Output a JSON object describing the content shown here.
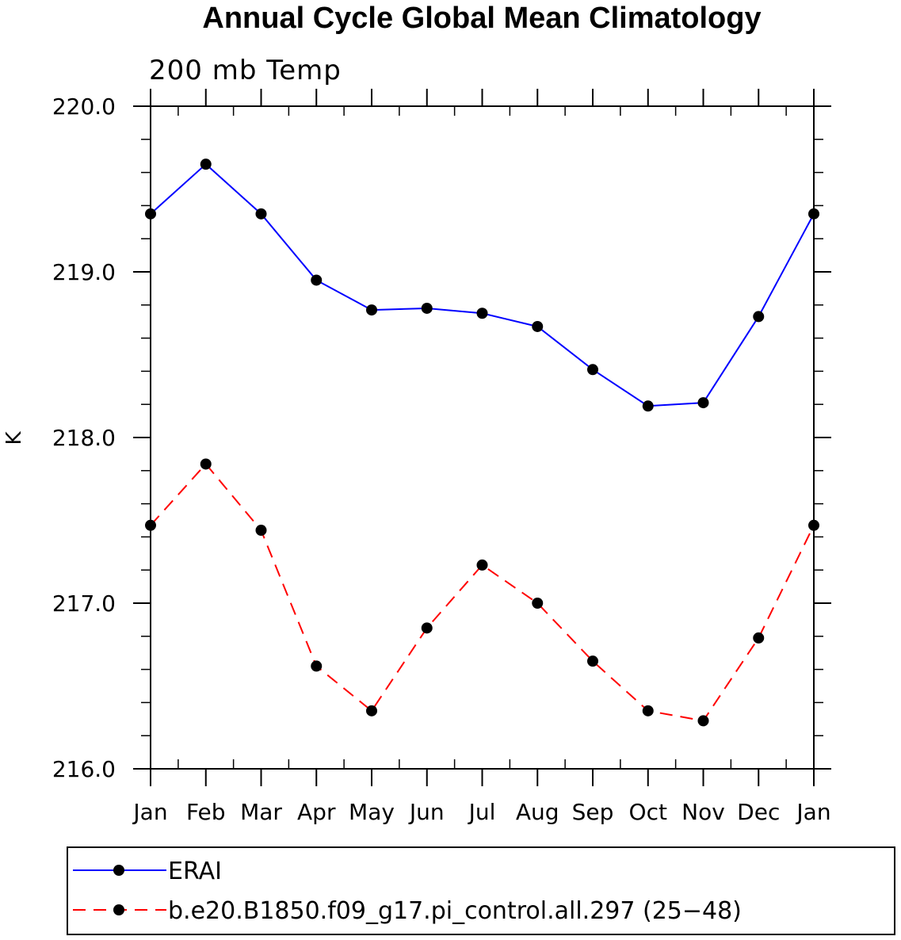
{
  "chart_data": {
    "type": "line",
    "title": "Annual Cycle Global Mean Climatology",
    "subtitle": "200 mb Temp",
    "xlabel": "",
    "ylabel": "K",
    "categories": [
      "Jan",
      "Feb",
      "Mar",
      "Apr",
      "May",
      "Jun",
      "Jul",
      "Aug",
      "Sep",
      "Oct",
      "Nov",
      "Dec",
      "Jan"
    ],
    "ylim": [
      216.0,
      220.0
    ],
    "yticks": [
      "216.0",
      "217.0",
      "218.0",
      "219.0",
      "220.0"
    ],
    "grid": false,
    "legend_position": "bottom",
    "series": [
      {
        "name": "ERAI",
        "color": "#0000ff",
        "line_style": "solid",
        "marker": "filled-circle",
        "values": [
          219.35,
          219.65,
          219.35,
          218.95,
          218.77,
          218.78,
          218.75,
          218.67,
          218.41,
          218.19,
          218.21,
          218.73,
          219.35
        ]
      },
      {
        "name": "b.e20.B1850.f09_g17.pi_control.all.297 (25−48)",
        "color": "#ff0000",
        "line_style": "dashed",
        "marker": "filled-circle",
        "values": [
          217.47,
          217.84,
          217.44,
          216.62,
          216.35,
          216.85,
          217.23,
          217.0,
          216.65,
          216.35,
          216.29,
          216.79,
          217.47
        ]
      }
    ]
  }
}
